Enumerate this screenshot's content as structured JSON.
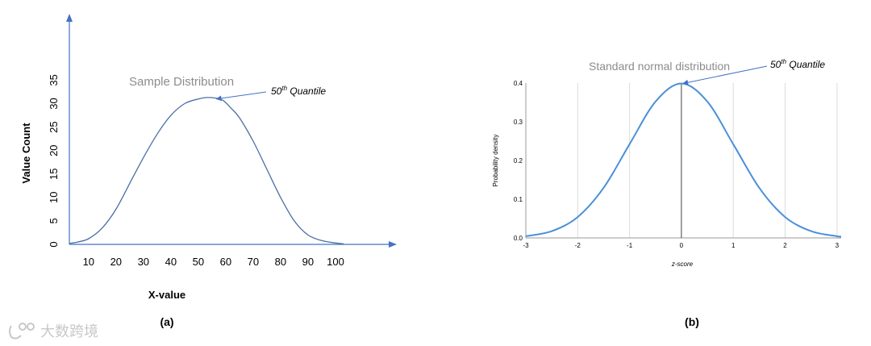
{
  "chart_data": [
    {
      "type": "line",
      "title": "Sample Distribution",
      "xlabel": "X-value",
      "ylabel": "Value Count",
      "panel_label": "(a)",
      "annotation": {
        "text": "50",
        "superscript": "th",
        "suffix": " Quantile",
        "x": 56,
        "y": 31
      },
      "x_ticks": [
        "10",
        "20",
        "30",
        "40",
        "50",
        "60",
        "70",
        "80",
        "90",
        "100"
      ],
      "y_ticks": [
        "0",
        "5",
        "10",
        "15",
        "20",
        "25",
        "30",
        "35"
      ],
      "xlim": [
        3,
        120
      ],
      "ylim": [
        0,
        49
      ],
      "series": [
        {
          "x": [
            3,
            6,
            10,
            15,
            20,
            25,
            30,
            35,
            40,
            45,
            50,
            53,
            56,
            59,
            62,
            65,
            70,
            75,
            80,
            85,
            90,
            95,
            100,
            103
          ],
          "y": [
            0.2,
            0.5,
            1.2,
            3.5,
            7.5,
            13,
            18.5,
            23.5,
            27.5,
            30,
            31,
            31.3,
            31.2,
            30.7,
            29,
            27,
            22,
            16,
            10,
            5,
            2,
            0.8,
            0.3,
            0.1
          ]
        }
      ],
      "grid": false,
      "color": "#4472c4"
    },
    {
      "type": "line",
      "title": "Standard normal distribution",
      "xlabel": "z-score",
      "ylabel": "Probability density",
      "panel_label": "(b)",
      "annotation": {
        "text": "50",
        "superscript": "th",
        "suffix": " Quantile",
        "x": 0,
        "y": 0.399
      },
      "x_ticks": [
        "-3",
        "-2",
        "-1",
        "0",
        "1",
        "2",
        "3"
      ],
      "y_ticks": [
        "0.0",
        "0.1",
        "0.2",
        "0.3",
        "0.4"
      ],
      "xlim": [
        -3,
        3.08
      ],
      "ylim": [
        0,
        0.4
      ],
      "series": [
        {
          "x": [
            -3,
            -2.5,
            -2,
            -1.5,
            -1,
            -0.5,
            0,
            0.5,
            1,
            1.5,
            2,
            2.5,
            3,
            3.08
          ],
          "y": [
            0.0044,
            0.0175,
            0.054,
            0.1295,
            0.242,
            0.352,
            0.399,
            0.352,
            0.242,
            0.1295,
            0.054,
            0.0175,
            0.0044,
            0.0035
          ]
        }
      ],
      "grid": "vertical",
      "color": "#4a90d9"
    }
  ],
  "watermark": {
    "text": "大数跨境"
  }
}
